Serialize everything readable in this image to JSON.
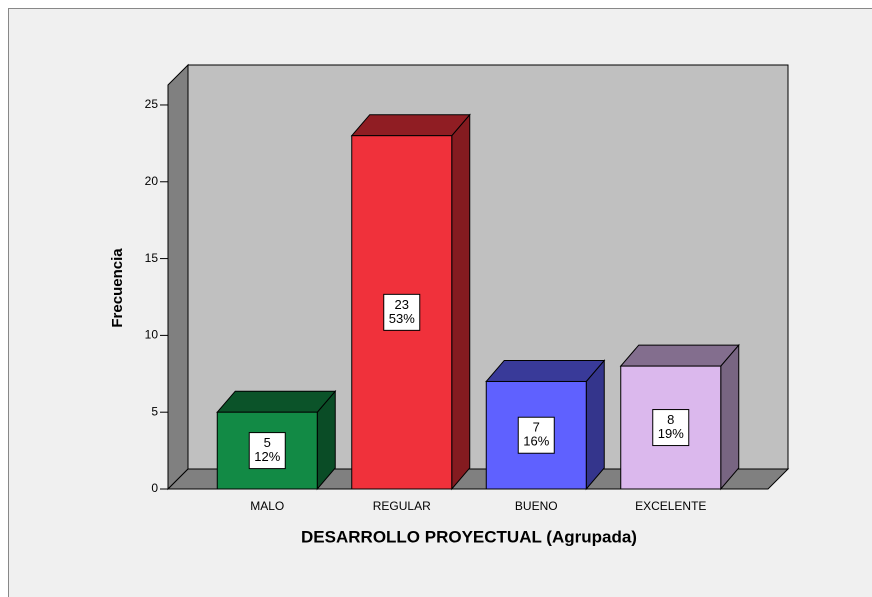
{
  "chart_data": {
    "type": "bar3d",
    "xlabel": "DESARROLLO PROYECTUAL  (Agrupada)",
    "ylabel": "Frecuencia",
    "categories": [
      "MALO",
      "REGULAR",
      "BUENO",
      "EXCELENTE"
    ],
    "values": [
      5,
      23,
      7,
      8
    ],
    "percentages": [
      12,
      53,
      16,
      19
    ],
    "percentage_labels": [
      "12%",
      "53%",
      "16%",
      "19%"
    ],
    "colors": [
      "#128a45",
      "#f0313b",
      "#5f61ff",
      "#dbb8ed"
    ],
    "ylim": [
      0,
      26.3
    ],
    "yticks": [
      0,
      5,
      10,
      15,
      20,
      25
    ]
  }
}
